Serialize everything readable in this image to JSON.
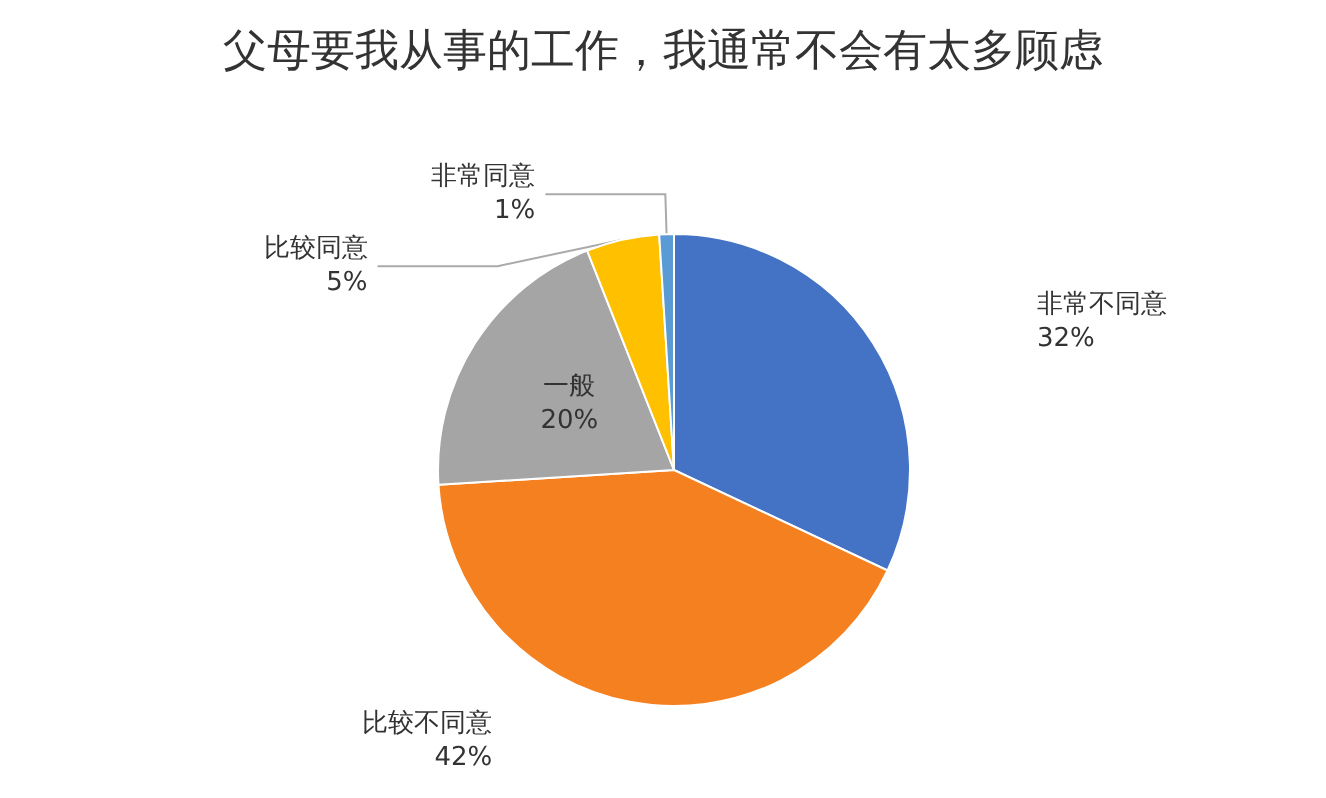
{
  "chart_data": {
    "type": "pie",
    "title": "父母要我从事的工作，我通常不会有太多顾虑",
    "categories": [
      "非常不同意",
      "比较不同意",
      "一般",
      "比较同意",
      "非常同意"
    ],
    "values": [
      32,
      42,
      20,
      5,
      1
    ],
    "value_labels": [
      "32%",
      "42%",
      "20%",
      "5%",
      "1%"
    ],
    "colors": [
      "#4472c4",
      "#f5801f",
      "#a5a5a5",
      "#ffc000",
      "#5b9bd5"
    ]
  }
}
